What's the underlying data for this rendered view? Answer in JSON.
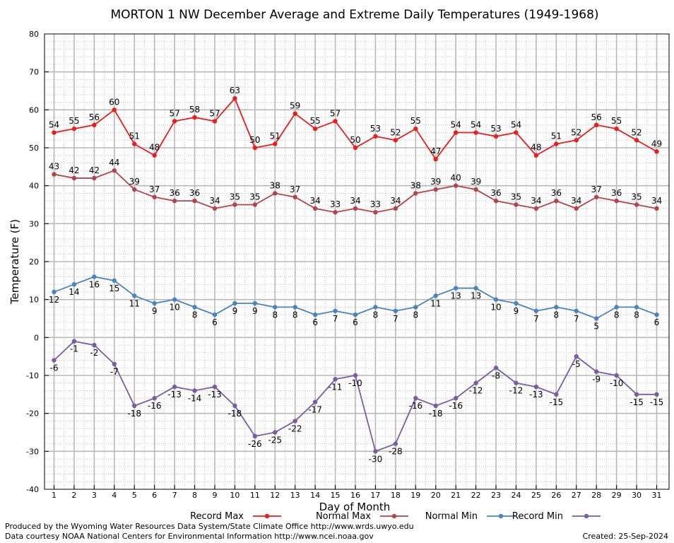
{
  "chart_data": {
    "type": "line",
    "title": "MORTON 1 NW December Average and Extreme Daily Temperatures (1949-1968)",
    "xlabel": "Day of Month",
    "ylabel": "Temperature (F)",
    "ylim": [
      -40,
      80
    ],
    "xlim": [
      1,
      31
    ],
    "grid": true,
    "legend_position": "bottom",
    "x": [
      1,
      2,
      3,
      4,
      5,
      6,
      7,
      8,
      9,
      10,
      11,
      12,
      13,
      14,
      15,
      16,
      17,
      18,
      19,
      20,
      21,
      22,
      23,
      24,
      25,
      26,
      27,
      28,
      29,
      30,
      31
    ],
    "series": [
      {
        "name": "Record Max",
        "color": "#ee1c1c",
        "values": [
          54,
          55,
          56,
          60,
          51,
          48,
          57,
          58,
          57,
          63,
          50,
          51,
          59,
          55,
          57,
          50,
          53,
          52,
          55,
          47,
          54,
          54,
          53,
          54,
          48,
          51,
          52,
          56,
          55,
          52,
          49
        ]
      },
      {
        "name": "Normal Max",
        "color": "#b5434a",
        "values": [
          43,
          42,
          42,
          44,
          39,
          37,
          36,
          36,
          34,
          35,
          35,
          38,
          37,
          34,
          33,
          34,
          33,
          34,
          38,
          39,
          40,
          39,
          36,
          35,
          34,
          36,
          34,
          37,
          36,
          35,
          34
        ]
      },
      {
        "name": "Normal Min",
        "color": "#4a84c0",
        "values": [
          12,
          14,
          16,
          15,
          11,
          9,
          10,
          8,
          6,
          9,
          9,
          8,
          8,
          6,
          7,
          6,
          8,
          7,
          8,
          11,
          13,
          13,
          10,
          9,
          7,
          8,
          7,
          5,
          8,
          8,
          6
        ]
      },
      {
        "name": "Record Min",
        "color": "#7a5ca2",
        "values": [
          -6,
          -1,
          -2,
          -7,
          -18,
          -16,
          -13,
          -14,
          -13,
          -18,
          -26,
          -25,
          -22,
          -17,
          -11,
          -10,
          -30,
          -28,
          -16,
          -18,
          -16,
          -12,
          -8,
          -12,
          -13,
          -15,
          -5,
          -9,
          -10,
          -15,
          -15
        ]
      }
    ]
  },
  "footer": {
    "line1": "Produced by the Wyoming Water Resources Data System/State Climate Office http://www.wrds.uwyo.edu",
    "line2": "Data courtesy NOAA National Centers for Environmental Information http://www.ncei.noaa.gov",
    "created": "Created:  25-Sep-2024"
  }
}
